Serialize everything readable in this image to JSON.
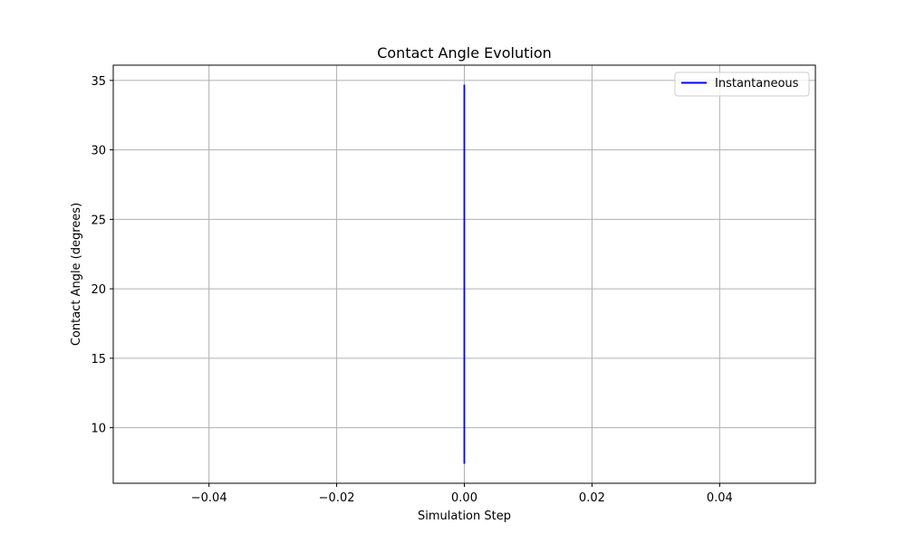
{
  "chart_data": {
    "type": "line",
    "title": "Contact Angle Evolution",
    "xlabel": "Simulation Step",
    "ylabel": "Contact Angle (degrees)",
    "xlim": [
      -0.055,
      0.055
    ],
    "ylim": [
      6.0,
      36.1
    ],
    "xticks": [
      -0.04,
      -0.02,
      0.0,
      0.02,
      0.04
    ],
    "xtick_labels": [
      "−0.04",
      "−0.02",
      "0.00",
      "0.02",
      "0.04"
    ],
    "yticks": [
      10,
      15,
      20,
      25,
      30,
      35
    ],
    "ytick_labels": [
      "10",
      "15",
      "20",
      "25",
      "30",
      "35"
    ],
    "grid": true,
    "legend_position": "upper-right",
    "series": [
      {
        "name": "Instantaneous",
        "color": "#0000ff",
        "points": [
          {
            "x": 0.0,
            "y": 7.4
          },
          {
            "x": 0.0,
            "y": 34.7
          }
        ]
      }
    ]
  }
}
